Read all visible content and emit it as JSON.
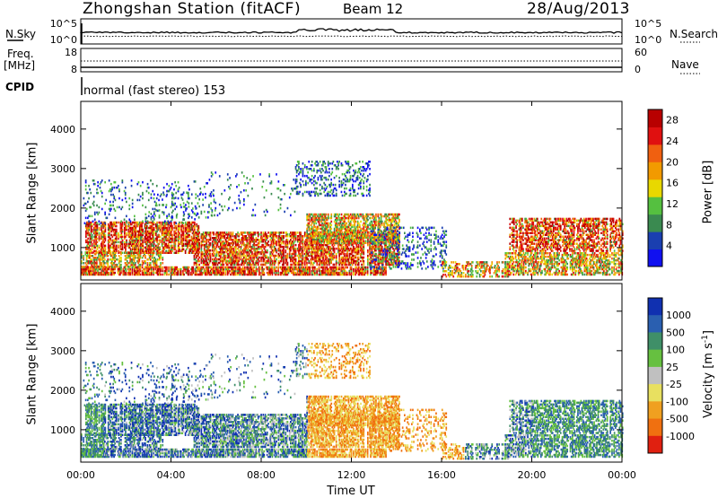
{
  "header": {
    "station_title": "Zhongshan Station (fitACF)",
    "beam_label": "Beam 12",
    "date_label": "28/Aug/2013"
  },
  "noise_panel": {
    "left_label": "N.Sky",
    "right_label": "N.Search",
    "left_ticks": [
      "10^5",
      "10^0"
    ],
    "right_ticks": [
      "10^5",
      "10^0"
    ]
  },
  "freq_panel": {
    "left_label_1": "Freq.",
    "left_label_2": "[MHz]",
    "left_ticks": [
      "18",
      "8"
    ],
    "right_label": "Nave",
    "right_ticks": [
      "60",
      "0"
    ]
  },
  "cpid_panel": {
    "label": "CPID",
    "mode_text": "normal (fast stereo) 153"
  },
  "colors": {
    "power_scale": [
      "#1010f0",
      "#1a3fb0",
      "#3a8a50",
      "#55c040",
      "#e8d800",
      "#f29a00",
      "#f06010",
      "#e01010",
      "#b80000"
    ],
    "velocity_scale": [
      "#1030b0",
      "#2a5fb0",
      "#3f8f68",
      "#66c040",
      "#c0c0c0",
      "#e8e060",
      "#f0a020",
      "#f07010",
      "#e02010"
    ]
  },
  "chart_data": [
    {
      "type": "heatmap",
      "title": "",
      "xlabel": "",
      "ylabel": "Slant Range [km]",
      "x_ticks": [
        "00:00",
        "04:00",
        "08:00",
        "12:00",
        "16:00",
        "20:00",
        "00:00"
      ],
      "y_ticks": [
        "1000",
        "2000",
        "3000",
        "4000"
      ],
      "ylim": [
        180,
        4700
      ],
      "colorbar": {
        "label": "Power [dB]",
        "ticks": [
          "4",
          "8",
          "12",
          "16",
          "20",
          "24",
          "28"
        ],
        "range": [
          0,
          30
        ]
      }
    },
    {
      "type": "heatmap",
      "title": "",
      "xlabel": "Time UT",
      "ylabel": "Slant Range [km]",
      "x_ticks": [
        "00:00",
        "04:00",
        "08:00",
        "12:00",
        "16:00",
        "20:00",
        "00:00"
      ],
      "y_ticks": [
        "1000",
        "2000",
        "3000",
        "4000"
      ],
      "ylim": [
        180,
        4700
      ],
      "colorbar": {
        "label": "Velocity [m s^-1]",
        "ticks": [
          "1000",
          "500",
          "100",
          "25",
          "-25",
          "-100",
          "-500",
          "-1000"
        ]
      }
    }
  ]
}
